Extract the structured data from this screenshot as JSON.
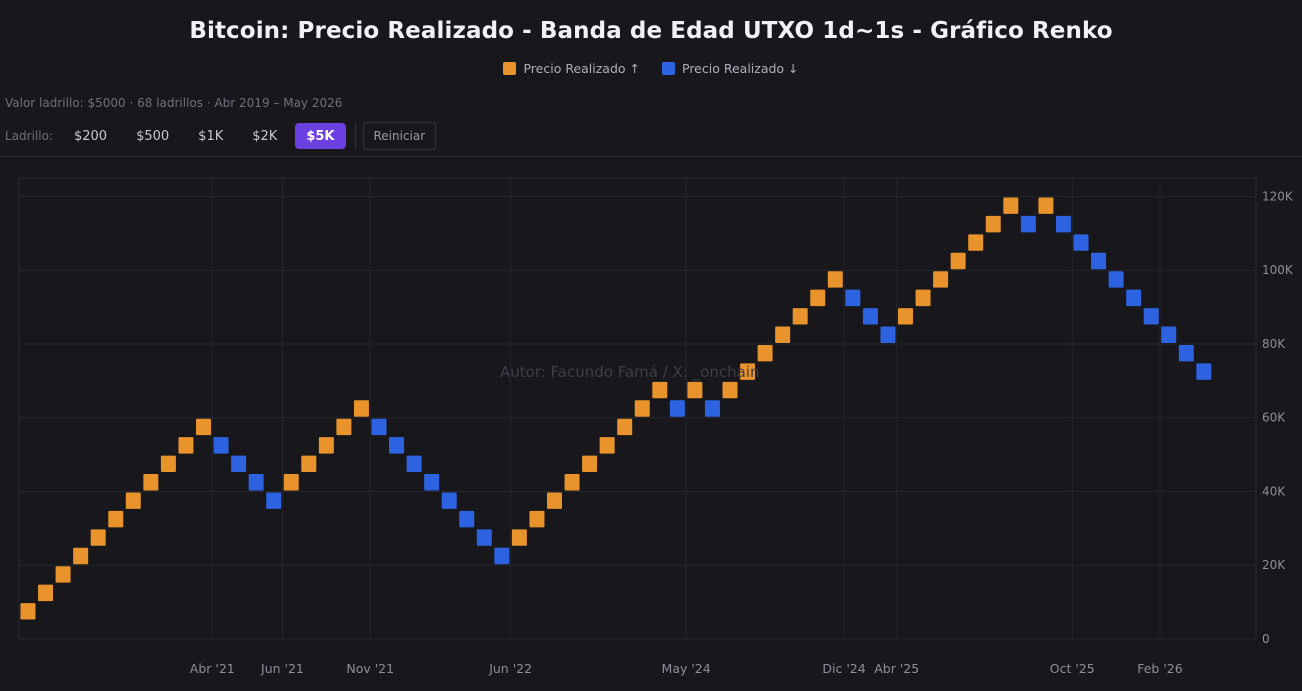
{
  "title": "Bitcoin: Precio Realizado - Banda de Edad UTXO 1d~1s - Gráfico Renko",
  "legend": {
    "up": {
      "label": "Precio Realizado ↑",
      "color": "#e8932c"
    },
    "down": {
      "label": "Precio Realizado ↓",
      "color": "#2d63e0"
    }
  },
  "subtitle": "Valor ladrillo: $5000 · 68 ladrillos · Abr 2019 – May 2026",
  "controls": {
    "label": "Ladrillo:",
    "buttons": [
      "$200",
      "$500",
      "$1K",
      "$2K",
      "$5K"
    ],
    "active": "$5K",
    "reset_label": "Reiniciar"
  },
  "watermark": "Autor: Facundo Famá / X: _onchain",
  "chart_data": {
    "type": "renko",
    "brick_size": 5000,
    "ylim": [
      0,
      125000
    ],
    "y_ticks": [
      0,
      20000,
      40000,
      60000,
      80000,
      100000,
      120000
    ],
    "y_tick_labels": [
      "0",
      "20K",
      "40K",
      "60K",
      "80K",
      "100K",
      "120K"
    ],
    "x_ticks": [
      {
        "brick": 10.5,
        "label": "Abr '21"
      },
      {
        "brick": 14.5,
        "label": "Jun '21"
      },
      {
        "brick": 19.5,
        "label": "Nov '21"
      },
      {
        "brick": 27.5,
        "label": "Jun '22"
      },
      {
        "brick": 37.5,
        "label": "May '24"
      },
      {
        "brick": 46.5,
        "label": "Dic '24"
      },
      {
        "brick": 49.5,
        "label": "Abr '25"
      },
      {
        "brick": 59.5,
        "label": "Oct '25"
      },
      {
        "brick": 64.5,
        "label": "Feb '26"
      }
    ],
    "bricks": [
      {
        "low": 5000,
        "dir": "up"
      },
      {
        "low": 10000,
        "dir": "up"
      },
      {
        "low": 15000,
        "dir": "up"
      },
      {
        "low": 20000,
        "dir": "up"
      },
      {
        "low": 25000,
        "dir": "up"
      },
      {
        "low": 30000,
        "dir": "up"
      },
      {
        "low": 35000,
        "dir": "up"
      },
      {
        "low": 40000,
        "dir": "up"
      },
      {
        "low": 45000,
        "dir": "up"
      },
      {
        "low": 50000,
        "dir": "up"
      },
      {
        "low": 55000,
        "dir": "up"
      },
      {
        "low": 50000,
        "dir": "down"
      },
      {
        "low": 45000,
        "dir": "down"
      },
      {
        "low": 40000,
        "dir": "down"
      },
      {
        "low": 35000,
        "dir": "down"
      },
      {
        "low": 40000,
        "dir": "up"
      },
      {
        "low": 45000,
        "dir": "up"
      },
      {
        "low": 50000,
        "dir": "up"
      },
      {
        "low": 55000,
        "dir": "up"
      },
      {
        "low": 60000,
        "dir": "up"
      },
      {
        "low": 55000,
        "dir": "down"
      },
      {
        "low": 50000,
        "dir": "down"
      },
      {
        "low": 45000,
        "dir": "down"
      },
      {
        "low": 40000,
        "dir": "down"
      },
      {
        "low": 35000,
        "dir": "down"
      },
      {
        "low": 30000,
        "dir": "down"
      },
      {
        "low": 25000,
        "dir": "down"
      },
      {
        "low": 20000,
        "dir": "down"
      },
      {
        "low": 25000,
        "dir": "up"
      },
      {
        "low": 30000,
        "dir": "up"
      },
      {
        "low": 35000,
        "dir": "up"
      },
      {
        "low": 40000,
        "dir": "up"
      },
      {
        "low": 45000,
        "dir": "up"
      },
      {
        "low": 50000,
        "dir": "up"
      },
      {
        "low": 55000,
        "dir": "up"
      },
      {
        "low": 60000,
        "dir": "up"
      },
      {
        "low": 65000,
        "dir": "up"
      },
      {
        "low": 60000,
        "dir": "down"
      },
      {
        "low": 65000,
        "dir": "up"
      },
      {
        "low": 60000,
        "dir": "down"
      },
      {
        "low": 65000,
        "dir": "up"
      },
      {
        "low": 70000,
        "dir": "up"
      },
      {
        "low": 75000,
        "dir": "up"
      },
      {
        "low": 80000,
        "dir": "up"
      },
      {
        "low": 85000,
        "dir": "up"
      },
      {
        "low": 90000,
        "dir": "up"
      },
      {
        "low": 95000,
        "dir": "up"
      },
      {
        "low": 90000,
        "dir": "down"
      },
      {
        "low": 85000,
        "dir": "down"
      },
      {
        "low": 80000,
        "dir": "down"
      },
      {
        "low": 85000,
        "dir": "up"
      },
      {
        "low": 90000,
        "dir": "up"
      },
      {
        "low": 95000,
        "dir": "up"
      },
      {
        "low": 100000,
        "dir": "up"
      },
      {
        "low": 105000,
        "dir": "up"
      },
      {
        "low": 110000,
        "dir": "up"
      },
      {
        "low": 115000,
        "dir": "up"
      },
      {
        "low": 110000,
        "dir": "down"
      },
      {
        "low": 115000,
        "dir": "up"
      },
      {
        "low": 110000,
        "dir": "down"
      },
      {
        "low": 105000,
        "dir": "down"
      },
      {
        "low": 100000,
        "dir": "down"
      },
      {
        "low": 95000,
        "dir": "down"
      },
      {
        "low": 90000,
        "dir": "down"
      },
      {
        "low": 85000,
        "dir": "down"
      },
      {
        "low": 80000,
        "dir": "down"
      },
      {
        "low": 75000,
        "dir": "down"
      },
      {
        "low": 70000,
        "dir": "down"
      }
    ]
  }
}
